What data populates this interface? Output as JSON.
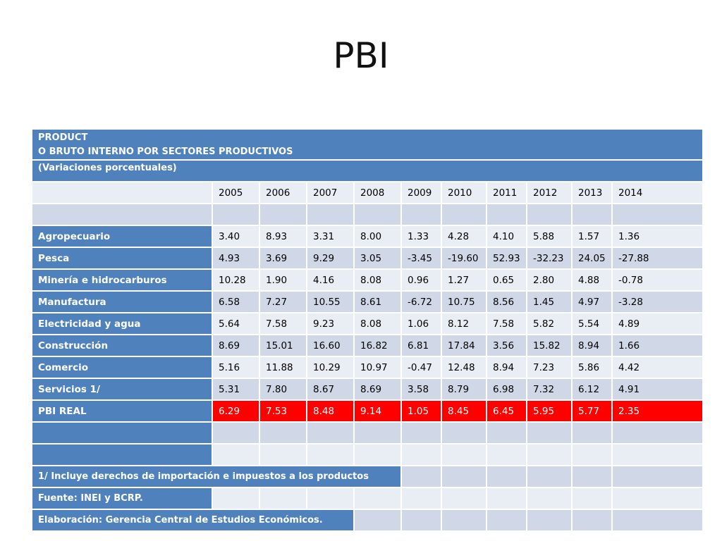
{
  "title": "PBI",
  "table": {
    "header_line1": "PRODUCT",
    "header_line2": "O BRUTO INTERNO POR SECTORES PRODUCTIVOS",
    "subtitle": "(Variaciones porcentuales)",
    "years": [
      "2005",
      "2006",
      "2007",
      "2008",
      "2009",
      "2010",
      "2011",
      "2012",
      "2013",
      "2014"
    ],
    "rows": [
      {
        "label": "Agropecuario",
        "values": [
          "3.40",
          "8.93",
          "3.31",
          "8.00",
          "1.33",
          "4.28",
          "4.10",
          "5.88",
          "1.57",
          "1.36"
        ]
      },
      {
        "label": "Pesca",
        "values": [
          "4.93",
          "3.69",
          "9.29",
          "3.05",
          "-3.45",
          "-19.60",
          "52.93",
          "-32.23",
          "24.05",
          "-27.88"
        ]
      },
      {
        "label": "Minería e hidrocarburos",
        "values": [
          "10.28",
          "1.90",
          "4.16",
          "8.08",
          "0.96",
          "1.27",
          "0.65",
          "2.80",
          "4.88",
          "-0.78"
        ]
      },
      {
        "label": "Manufactura",
        "values": [
          "6.58",
          "7.27",
          "10.55",
          "8.61",
          "-6.72",
          "10.75",
          "8.56",
          "1.45",
          "4.97",
          "-3.28"
        ]
      },
      {
        "label": "Electricidad y agua",
        "values": [
          "5.64",
          "7.58",
          "9.23",
          "8.08",
          "1.06",
          "8.12",
          "7.58",
          "5.82",
          "5.54",
          "4.89"
        ]
      },
      {
        "label": "Construcción",
        "values": [
          "8.69",
          "15.01",
          "16.60",
          "16.82",
          "6.81",
          "17.84",
          "3.56",
          "15.82",
          "8.94",
          "1.66"
        ]
      },
      {
        "label": "Comercio",
        "values": [
          "5.16",
          "11.88",
          "10.29",
          "10.97",
          "-0.47",
          "12.48",
          "8.94",
          "7.23",
          "5.86",
          "4.42"
        ]
      },
      {
        "label": "Servicios  1/",
        "values": [
          "5.31",
          "7.80",
          "8.67",
          "8.69",
          "3.58",
          "8.79",
          "6.98",
          "7.32",
          "6.12",
          "4.91"
        ]
      }
    ],
    "total": {
      "label": "PBI REAL",
      "values": [
        "6.29",
        "7.53",
        "8.48",
        "9.14",
        "1.05",
        "8.45",
        "6.45",
        "5.95",
        "5.77",
        "2.35"
      ]
    },
    "notes": {
      "note1": "1/ Incluye derechos de importación e impuestos a los productos",
      "source": "Fuente: INEI y BCRP.",
      "elaboration": "Elaboración: Gerencia Central de Estudios Económicos."
    }
  },
  "colors": {
    "header_blue": "#4f81bd",
    "row_dark": "#d0d8e8",
    "row_light": "#e9edf4",
    "highlight_red": "#ff0000"
  }
}
